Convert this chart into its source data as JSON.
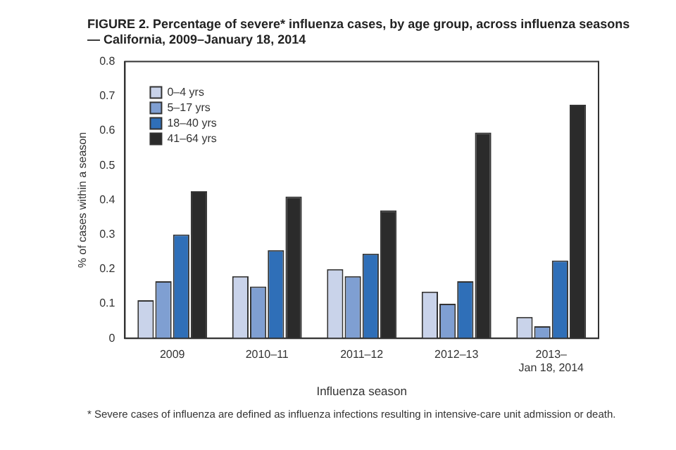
{
  "chart_data": {
    "type": "bar",
    "title": "FIGURE 2. Percentage of severe* influenza cases, by age group, across influenza seasons — California, 2009–January 18, 2014",
    "xlabel": "Influenza season",
    "ylabel": "% of cases within a season",
    "categories": [
      "2009",
      "2010–11",
      "2011–12",
      "2012–13",
      "2013–\nJan 18, 2014"
    ],
    "series": [
      {
        "name": "0–4 yrs",
        "color": "#c9d3ea",
        "values": [
          0.11,
          0.18,
          0.2,
          0.135,
          0.062
        ]
      },
      {
        "name": "5–17 yrs",
        "color": "#7f9fd2",
        "values": [
          0.165,
          0.15,
          0.18,
          0.1,
          0.035
        ]
      },
      {
        "name": "18–40 yrs",
        "color": "#2f6fb8",
        "values": [
          0.3,
          0.255,
          0.245,
          0.165,
          0.225
        ]
      },
      {
        "name": "41–64 yrs",
        "color": "#2b2b2b",
        "values": [
          0.425,
          0.41,
          0.37,
          0.595,
          0.675
        ]
      }
    ],
    "ylim": [
      0,
      0.8
    ],
    "yticks": [
      0,
      0.1,
      0.2,
      0.3,
      0.4,
      0.5,
      0.6,
      0.7,
      0.8
    ],
    "grid": false,
    "legend": "top left",
    "annotations": [
      "* Severe cases of influenza are defined as influenza infections resulting in intensive-care unit admission or death."
    ]
  }
}
